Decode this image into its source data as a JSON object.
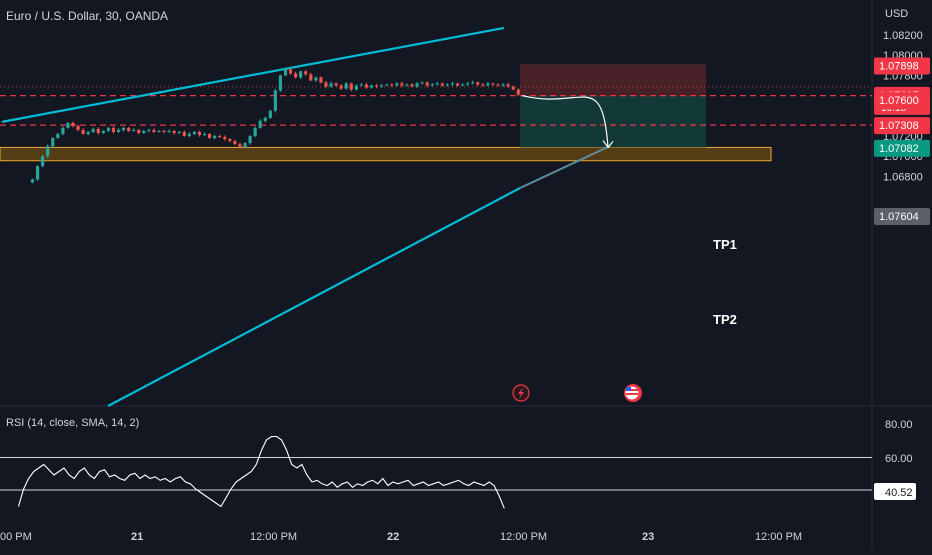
{
  "header": {
    "symbol_title": "Euro / U.S. Dollar, 30, OANDA",
    "currency": "USD"
  },
  "rsi_panel": {
    "title": "RSI (14, close, SMA, 14, 2)",
    "tick_labels": [
      "80.00",
      "60.00"
    ],
    "current_value": "40.52"
  },
  "price_axis": {
    "tick_labels": [
      "1.08200",
      "1.08000",
      "1.07800",
      "1.07200",
      "1.07000",
      "1.06800"
    ]
  },
  "price_badges": {
    "stop": "1.07898",
    "current": "1.07607",
    "countdown": "16:18",
    "last": "1.07604",
    "entry": "1.07600",
    "tp1": "1.07308",
    "tp2": "1.07082"
  },
  "time_axis": {
    "labels": [
      "00 PM",
      "21",
      "12:00 PM",
      "22",
      "12:00 PM",
      "23",
      "12:00 PM"
    ]
  },
  "annotations": {
    "tp1": "TP1",
    "tp2": "TP2"
  },
  "colors": {
    "background": "#131722",
    "bull": "#26a69a",
    "bear": "#ef5350",
    "channel": "#00bcd4",
    "zone_fill": "#6b4a12",
    "zone_border": "#f2a830",
    "stop_zone": "#4a2228",
    "target_zone": "#123b3a",
    "dashed_level": "#f23645"
  },
  "chart_data": {
    "type": "candlestick",
    "symbol": "Euro / U.S. Dollar",
    "interval": "30",
    "source": "OANDA",
    "y_axis_unit": "USD",
    "ylim": [
      1.0672,
      1.0832
    ],
    "x_axis_labels": [
      "00 PM",
      "21",
      "12:00 PM",
      "22",
      "12:00 PM",
      "23",
      "12:00 PM"
    ],
    "price_path": [
      1.0677,
      1.069,
      1.07,
      1.071,
      1.0718,
      1.0722,
      1.0728,
      1.0733,
      1.073,
      1.0726,
      1.0722,
      1.0724,
      1.0727,
      1.0723,
      1.0725,
      1.0728,
      1.0724,
      1.0726,
      1.0728,
      1.0725,
      1.0726,
      1.0723,
      1.0725,
      1.0726,
      1.0724,
      1.0725,
      1.0724,
      1.0725,
      1.0723,
      1.0724,
      1.072,
      1.0722,
      1.0724,
      1.0721,
      1.0722,
      1.0718,
      1.072,
      1.0719,
      1.0717,
      1.0715,
      1.0712,
      1.0709,
      1.0713,
      1.072,
      1.0728,
      1.0735,
      1.0738,
      1.0745,
      1.0765,
      1.078,
      1.0786,
      1.0782,
      1.0778,
      1.0784,
      1.0781,
      1.0775,
      1.0778,
      1.0773,
      1.0769,
      1.0772,
      1.077,
      1.0767,
      1.0772,
      1.0766,
      1.077,
      1.0771,
      1.0768,
      1.077,
      1.0769,
      1.077,
      1.0771,
      1.077,
      1.0772,
      1.077,
      1.0771,
      1.0769,
      1.0772,
      1.0773,
      1.077,
      1.0771,
      1.0772,
      1.077,
      1.0771,
      1.0772,
      1.077,
      1.0771,
      1.0772,
      1.0773,
      1.0771,
      1.077,
      1.0772,
      1.0771,
      1.077,
      1.0771,
      1.0769,
      1.0766,
      1.0761
    ],
    "rsi": {
      "name": "RSI (14, close, SMA, 14, 2)",
      "ylim": [
        20,
        100
      ],
      "levels": [
        70,
        30
      ],
      "tick_labels": [
        "80.00",
        "60.00"
      ],
      "last_value": 40.52,
      "values": [
        42,
        52,
        58,
        62,
        64,
        66,
        63,
        60,
        62,
        64,
        60,
        58,
        62,
        64,
        60,
        58,
        62,
        63,
        59,
        60,
        58,
        57,
        60,
        61,
        58,
        60,
        58,
        59,
        57,
        58,
        56,
        58,
        59,
        56,
        55,
        52,
        50,
        48,
        46,
        44,
        42,
        47,
        52,
        56,
        58,
        60,
        62,
        66,
        74,
        80,
        82,
        82,
        80,
        74,
        66,
        64,
        66,
        60,
        56,
        57,
        55,
        54,
        56,
        53,
        55,
        56,
        53,
        55,
        54,
        56,
        57,
        55,
        58,
        54,
        56,
        55,
        56,
        57,
        54,
        55,
        56,
        54,
        55,
        56,
        54,
        55,
        56,
        57,
        55,
        54,
        56,
        55,
        54,
        56,
        54,
        48,
        41
      ]
    },
    "levels": {
      "stop_loss": 1.07898,
      "entry": 1.076,
      "tp1": 1.07308,
      "tp2": 1.07082,
      "dotted_high": 1.07686
    },
    "zones": [
      {
        "name": "support",
        "from": 1.06955,
        "to": 1.07087
      },
      {
        "name": "stop",
        "from": 1.076,
        "to": 1.0791
      },
      {
        "name": "target",
        "from": 1.07087,
        "to": 1.076
      }
    ],
    "channel": {
      "upper": [
        [
          0.3,
          1.0734
        ],
        [
          26.0,
          1.0827
        ]
      ],
      "lower": [
        [
          5.0,
          1.068
        ],
        [
          33.0,
          1.07748
        ]
      ]
    },
    "trade_projection": {
      "from": 1.076,
      "to": 1.07087,
      "direction": "down"
    }
  }
}
